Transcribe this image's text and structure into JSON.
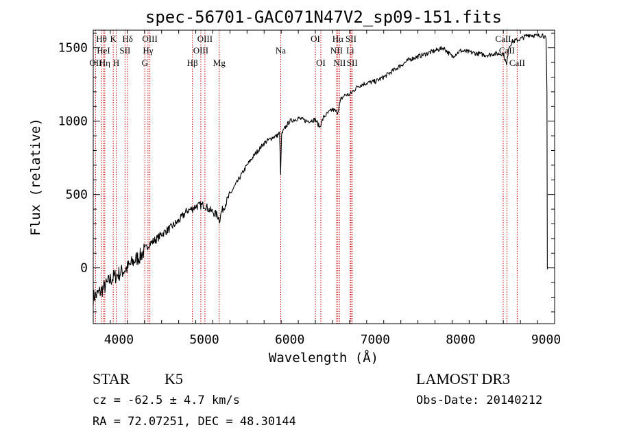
{
  "chart_data": {
    "type": "line",
    "title": "spec-56701-GAC071N47V2_sp09-151.fits",
    "xlabel": "Wavelength (Å)",
    "ylabel": "Flux (relative)",
    "xlim": [
      3700,
      9100
    ],
    "ylim": [
      -380,
      1620
    ],
    "x_ticks": [
      4000,
      5000,
      6000,
      7000,
      8000,
      9000
    ],
    "x_tick_labels": [
      "4000",
      "5000",
      "6000",
      "7000",
      "8000",
      "9000"
    ],
    "y_ticks": [
      0,
      500,
      1000,
      1500
    ],
    "y_tick_labels": [
      "0",
      "500",
      "1000",
      "1500"
    ],
    "series": [
      {
        "name": "flux",
        "x": [
          3700,
          3750,
          3800,
          3850,
          3900,
          3950,
          4000,
          4050,
          4100,
          4150,
          4200,
          4250,
          4300,
          4350,
          4400,
          4450,
          4500,
          4600,
          4700,
          4800,
          4850,
          4900,
          5000,
          5050,
          5100,
          5150,
          5180,
          5200,
          5300,
          5400,
          5500,
          5600,
          5700,
          5800,
          5850,
          5880,
          5893,
          5905,
          5950,
          6000,
          6100,
          6200,
          6300,
          6350,
          6400,
          6500,
          6560,
          6600,
          6650,
          6700,
          6800,
          6900,
          7000,
          7100,
          7200,
          7300,
          7400,
          7500,
          7600,
          7700,
          7800,
          7900,
          8000,
          8100,
          8200,
          8300,
          8400,
          8500,
          8540,
          8560,
          8600,
          8700,
          8800,
          8900,
          8960,
          9000,
          9010,
          9015
        ],
        "y": [
          -200,
          -180,
          -150,
          -120,
          -80,
          -60,
          -40,
          -20,
          0,
          30,
          60,
          80,
          120,
          160,
          180,
          200,
          230,
          270,
          320,
          390,
          400,
          420,
          430,
          400,
          380,
          360,
          330,
          380,
          500,
          600,
          700,
          780,
          850,
          890,
          900,
          920,
          650,
          910,
          960,
          1000,
          1020,
          1000,
          1010,
          960,
          1030,
          1080,
          1060,
          1150,
          1180,
          1180,
          1240,
          1260,
          1270,
          1300,
          1340,
          1380,
          1420,
          1440,
          1460,
          1480,
          1500,
          1440,
          1480,
          1470,
          1460,
          1450,
          1460,
          1460,
          1380,
          1500,
          1540,
          1560,
          1590,
          1580,
          1590,
          1560,
          1200,
          -10
        ]
      }
    ],
    "line_annotations": [
      {
        "label": "Hθ",
        "x": 3797,
        "row": 1
      },
      {
        "label": "OII",
        "x": 3727,
        "row": 3
      },
      {
        "label": "HeI",
        "x": 3820,
        "row": 2
      },
      {
        "label": "Hη",
        "x": 3835,
        "row": 3
      },
      {
        "label": "K",
        "x": 3934,
        "row": 1
      },
      {
        "label": "H",
        "x": 3969,
        "row": 3
      },
      {
        "label": "SII",
        "x": 4072,
        "row": 2
      },
      {
        "label": "Hδ",
        "x": 4102,
        "row": 1
      },
      {
        "label": "OIII",
        "x": 4363,
        "row": 1
      },
      {
        "label": "Hγ",
        "x": 4341,
        "row": 2
      },
      {
        "label": "G",
        "x": 4304,
        "row": 3
      },
      {
        "label": "Hβ",
        "x": 4861,
        "row": 3
      },
      {
        "label": "OIII",
        "x": 5007,
        "row": 1
      },
      {
        "label": "OIII",
        "x": 4959,
        "row": 2
      },
      {
        "label": "Mg",
        "x": 5175,
        "row": 3
      },
      {
        "label": "Na",
        "x": 5894,
        "row": 2
      },
      {
        "label": "OI",
        "x": 6300,
        "row": 1
      },
      {
        "label": "OI",
        "x": 6364,
        "row": 3
      },
      {
        "label": "Hα",
        "x": 6563,
        "row": 1
      },
      {
        "label": "NII",
        "x": 6548,
        "row": 2
      },
      {
        "label": "NII",
        "x": 6583,
        "row": 3
      },
      {
        "label": "SII",
        "x": 6717,
        "row": 1
      },
      {
        "label": "Li",
        "x": 6708,
        "row": 2
      },
      {
        "label": "SII",
        "x": 6731,
        "row": 3
      },
      {
        "label": "CaII",
        "x": 8498,
        "row": 1
      },
      {
        "label": "CaII",
        "x": 8542,
        "row": 2
      },
      {
        "label": "CaII",
        "x": 8662,
        "row": 3
      }
    ]
  },
  "info": {
    "class_label": "STAR",
    "subclass_label": "K5",
    "survey_label": "LAMOST DR3",
    "cz_text": "cz = -62.5 ± 4.7 km/s",
    "obsdate_text": "Obs-Date: 20140212",
    "radec_text": "RA =  72.07251, DEC =  48.30144"
  },
  "colors": {
    "spectrum": "#000000",
    "line_markers": "#cc0000"
  }
}
